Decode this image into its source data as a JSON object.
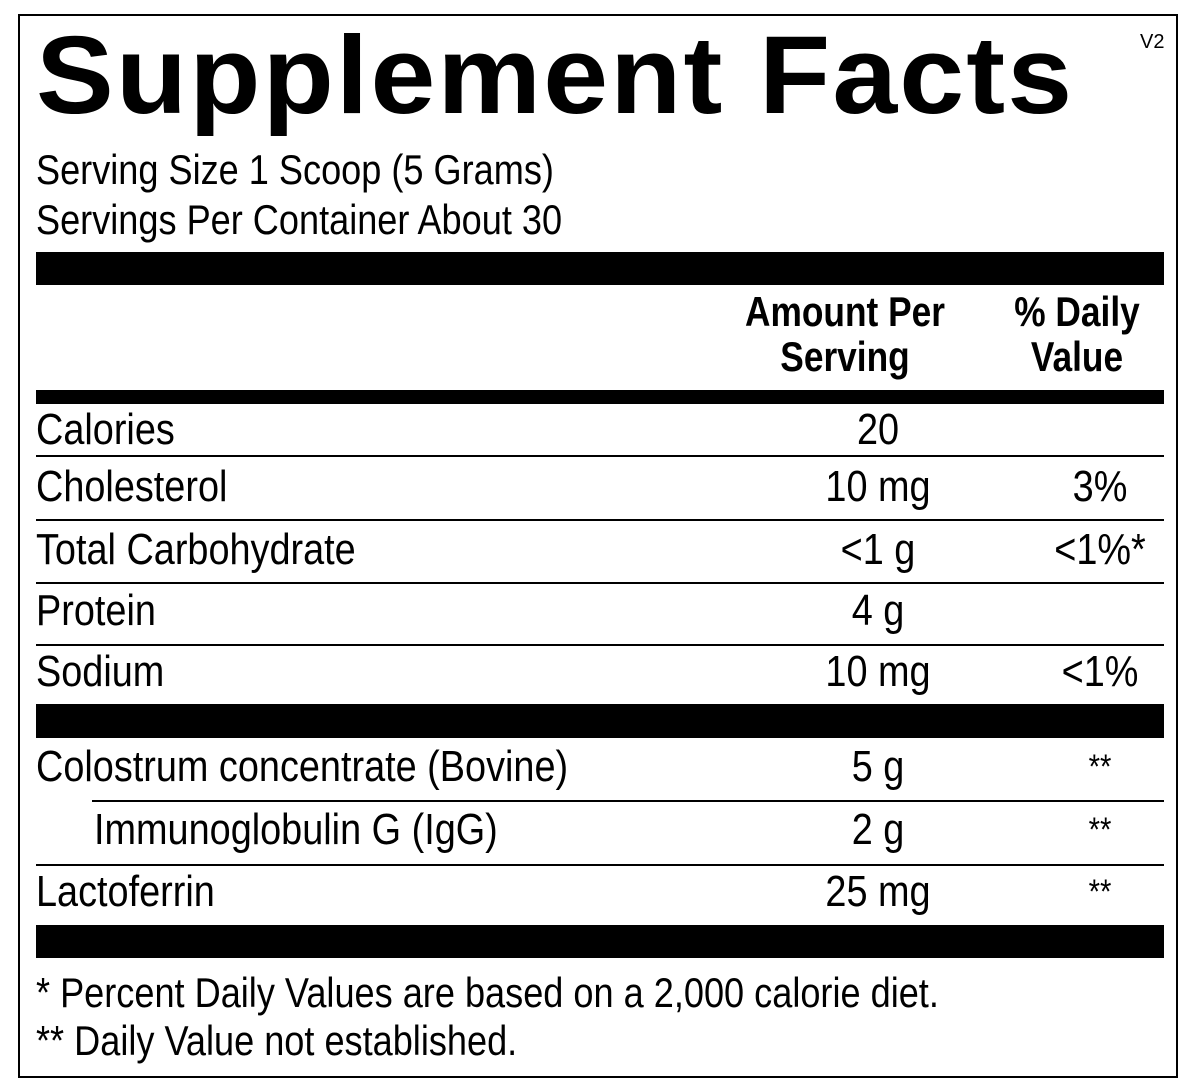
{
  "header": {
    "title": "Supplement Facts",
    "version": "V2",
    "serving_size": "Serving Size 1 Scoop (5 Grams)",
    "servings_per_container": "Servings Per Container About 30"
  },
  "table": {
    "columns": [
      [
        "Amount Per",
        "Serving"
      ],
      [
        "% Daily",
        "Value"
      ]
    ],
    "nutrients": [
      {
        "name": "Calories",
        "amount": "20"
      },
      {
        "name": "Cholesterol",
        "amount": "10 mg",
        "dv": "3%"
      },
      {
        "name": "Total Carbohydrate",
        "amount": "<1 g",
        "dv": "<1%*"
      },
      {
        "name": "Protein",
        "amount": "4 g"
      },
      {
        "name": "Sodium",
        "amount": "10 mg",
        "dv": "<1%"
      }
    ],
    "ingredients": [
      {
        "name": "Colostrum concentrate (Bovine)",
        "amount": "5 g",
        "dv": "**"
      },
      {
        "name": "Immunoglobulin G (IgG)",
        "amount": "2 g",
        "dv": "**",
        "indent": true
      },
      {
        "name": "Lactoferrin",
        "amount": "25 mg",
        "dv": "**"
      }
    ]
  },
  "footnotes": [
    "* Percent Daily Values are based on a 2,000 calorie diet.",
    "** Daily Value not established."
  ]
}
